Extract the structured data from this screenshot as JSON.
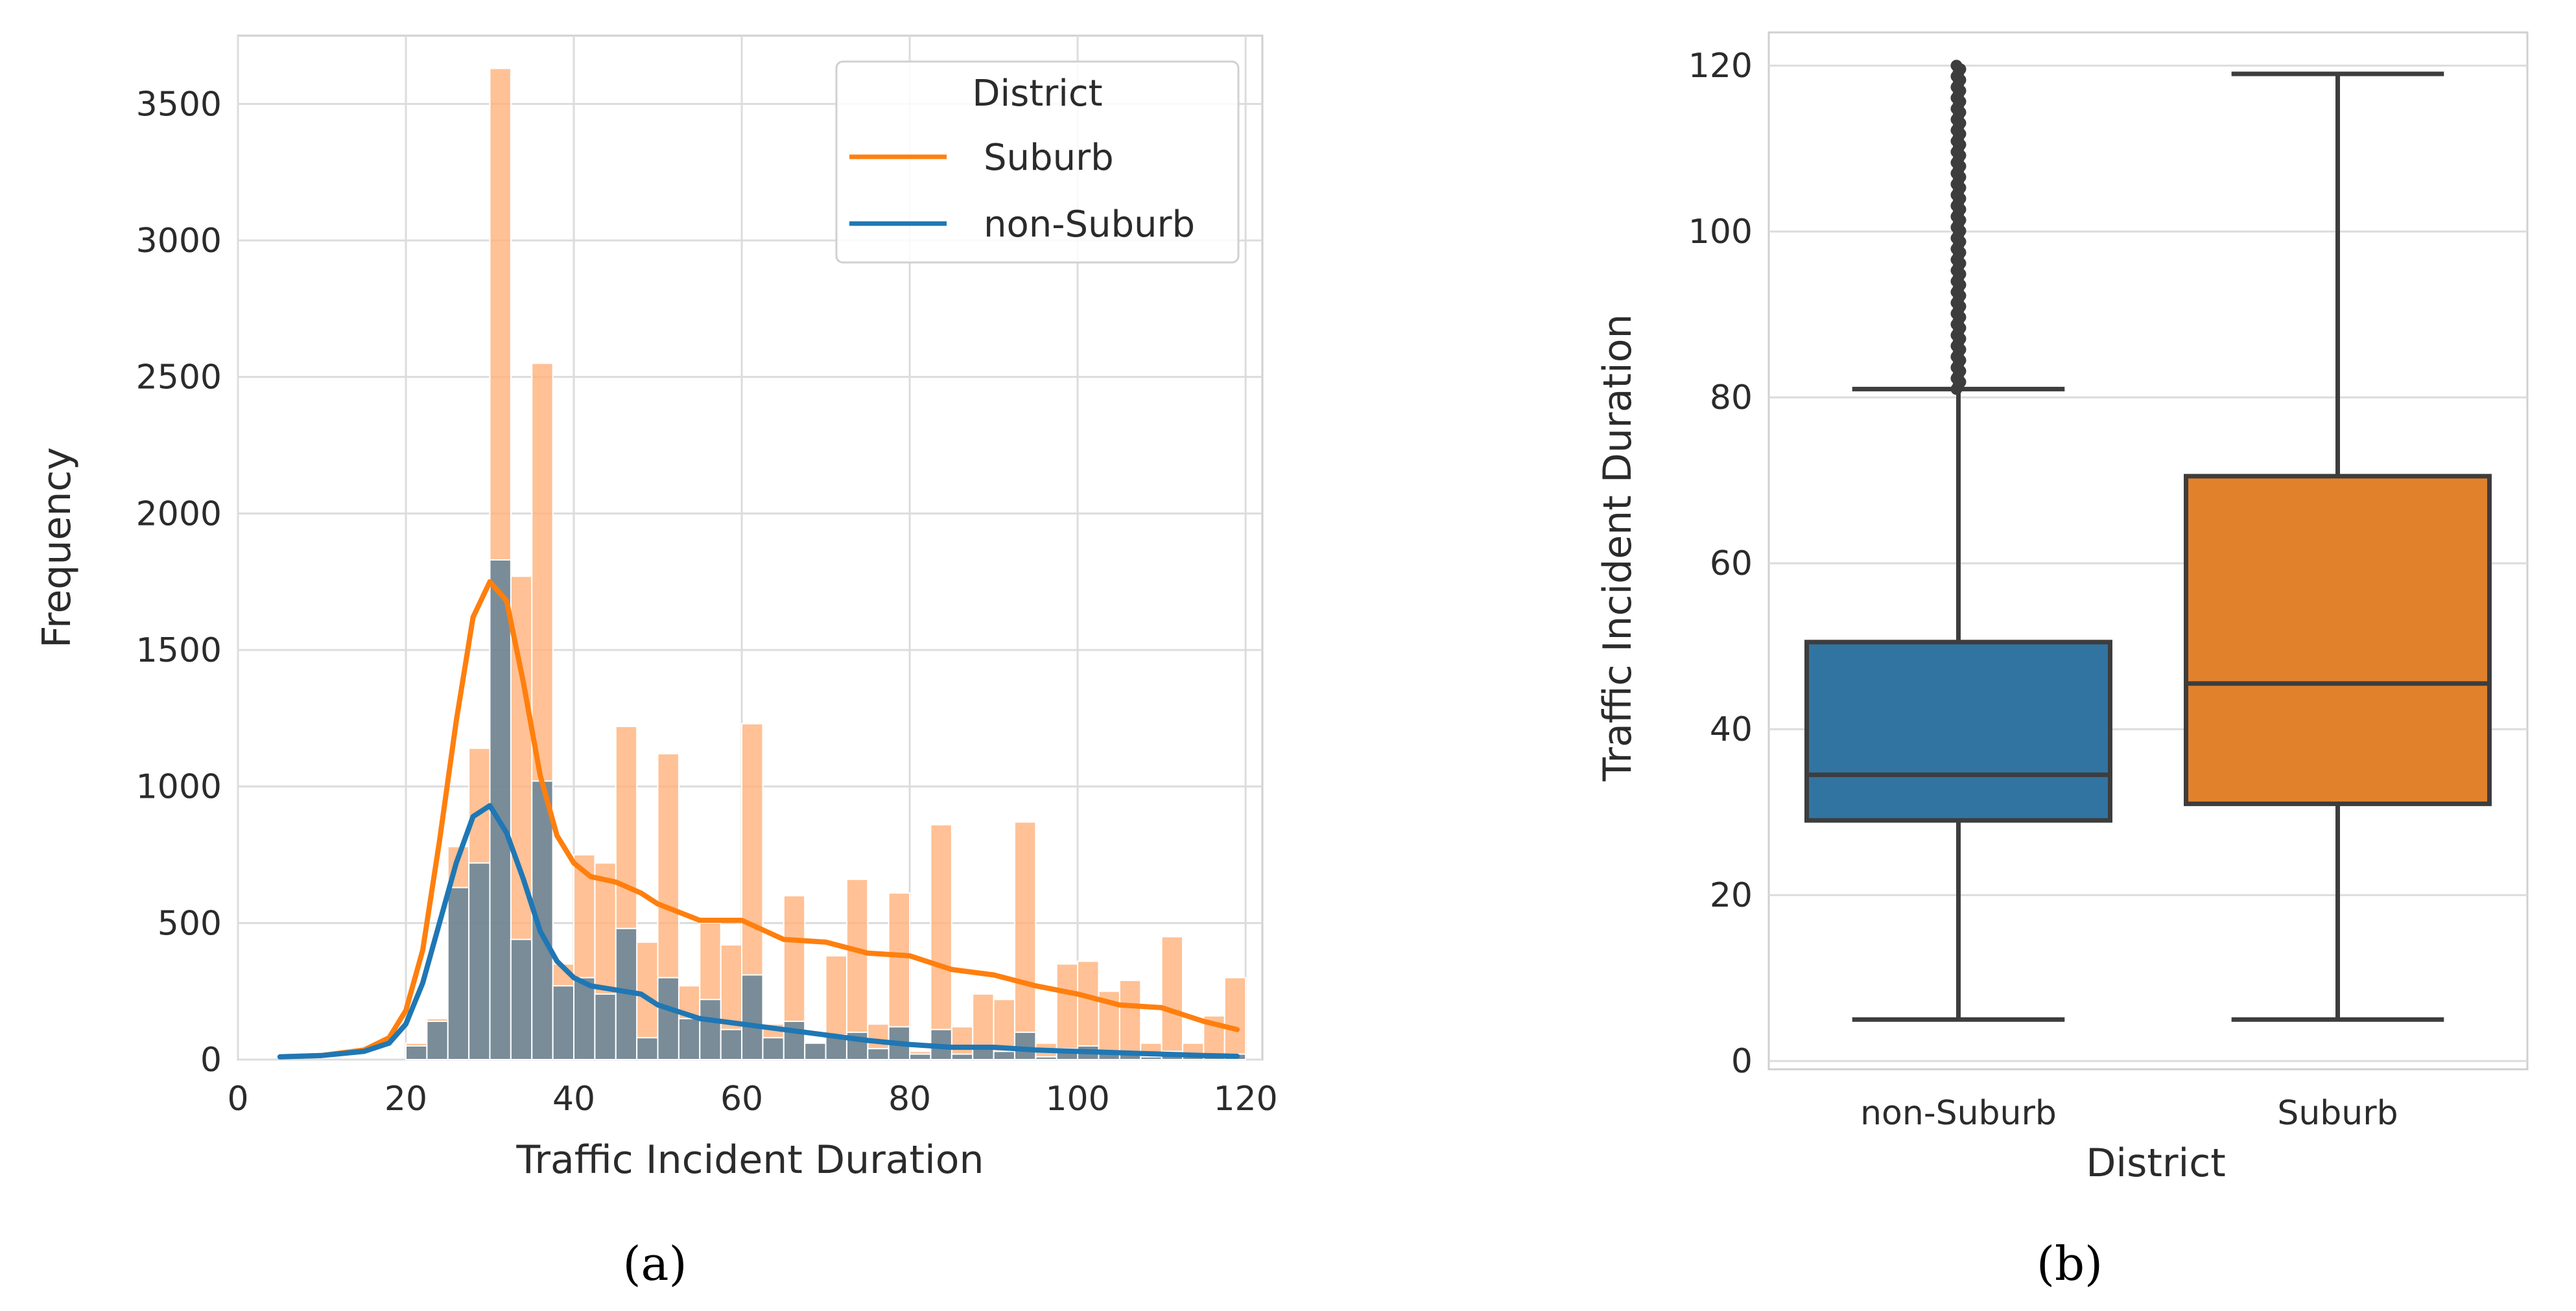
{
  "chart_data": [
    {
      "panel": "a",
      "type": "bar",
      "subtype": "histogram_with_kde",
      "caption": "(a)",
      "xlabel": "Traffic Incident Duration",
      "ylabel": "Frequency",
      "xlim": [
        0,
        122
      ],
      "ylim": [
        0,
        3750
      ],
      "xticks": [
        0,
        20,
        40,
        60,
        80,
        100,
        120
      ],
      "yticks": [
        0,
        500,
        1000,
        1500,
        2000,
        2500,
        3000,
        3500
      ],
      "grid": true,
      "bin_width": 2.5,
      "bin_starts": [
        20,
        22.5,
        25,
        27.5,
        30,
        32.5,
        35,
        37.5,
        40,
        42.5,
        45,
        47.5,
        50,
        52.5,
        55,
        57.5,
        60,
        62.5,
        65,
        67.5,
        70,
        72.5,
        75,
        77.5,
        80,
        82.5,
        85,
        87.5,
        90,
        92.5,
        95,
        97.5,
        100,
        102.5,
        105,
        107.5,
        110,
        112.5,
        115,
        117.5
      ],
      "legend": {
        "title": "District",
        "position": "top-right",
        "entries": [
          "Suburb",
          "non-Suburb"
        ]
      },
      "series": [
        {
          "name": "Suburb",
          "color": "#ff7f0e",
          "bin_counts": [
            60,
            150,
            780,
            1140,
            3630,
            1770,
            2550,
            350,
            750,
            720,
            1220,
            430,
            1120,
            270,
            500,
            420,
            1230,
            130,
            600,
            60,
            380,
            660,
            130,
            610,
            30,
            860,
            120,
            240,
            220,
            870,
            60,
            350,
            360,
            250,
            290,
            60,
            450,
            60,
            160,
            300
          ],
          "kde_x": [
            5,
            10,
            15,
            18,
            20,
            22,
            24,
            26,
            28,
            30,
            32,
            34,
            36,
            38,
            40,
            42,
            45,
            48,
            50,
            55,
            60,
            65,
            70,
            75,
            80,
            85,
            90,
            95,
            100,
            105,
            110,
            115,
            119
          ],
          "kde_y": [
            10,
            15,
            35,
            80,
            180,
            400,
            800,
            1240,
            1620,
            1750,
            1680,
            1380,
            1040,
            820,
            720,
            670,
            650,
            610,
            570,
            510,
            510,
            440,
            430,
            390,
            380,
            330,
            310,
            270,
            240,
            200,
            190,
            140,
            110
          ]
        },
        {
          "name": "non-Suburb",
          "color": "#1f77b4",
          "bin_counts": [
            50,
            140,
            630,
            720,
            1830,
            440,
            1020,
            270,
            300,
            240,
            480,
            80,
            300,
            150,
            220,
            110,
            310,
            80,
            140,
            60,
            90,
            100,
            40,
            120,
            20,
            110,
            20,
            40,
            30,
            100,
            10,
            40,
            50,
            30,
            20,
            10,
            30,
            10,
            10,
            20
          ],
          "kde_x": [
            5,
            10,
            15,
            18,
            20,
            22,
            24,
            26,
            28,
            30,
            32,
            34,
            36,
            38,
            40,
            42,
            45,
            48,
            50,
            55,
            60,
            65,
            70,
            75,
            80,
            85,
            90,
            95,
            100,
            105,
            110,
            115,
            119
          ],
          "kde_y": [
            10,
            15,
            30,
            60,
            130,
            280,
            500,
            720,
            890,
            930,
            830,
            660,
            470,
            360,
            300,
            270,
            255,
            240,
            200,
            150,
            130,
            110,
            90,
            70,
            55,
            45,
            45,
            35,
            30,
            25,
            20,
            15,
            12
          ]
        }
      ]
    },
    {
      "panel": "b",
      "type": "box",
      "caption": "(b)",
      "xlabel": "District",
      "ylabel": "Traffic Incident Duration",
      "ylim": [
        -1,
        124
      ],
      "yticks": [
        0,
        20,
        40,
        60,
        80,
        100,
        120
      ],
      "grid": true,
      "categories": [
        "non-Suburb",
        "Suburb"
      ],
      "boxes": [
        {
          "name": "non-Suburb",
          "color": "#3274a1",
          "whisker_low": 5,
          "q1": 29,
          "median": 34.5,
          "q3": 50.5,
          "whisker_high": 81,
          "outlier_range": [
            81,
            120
          ]
        },
        {
          "name": "Suburb",
          "color": "#e1812c",
          "whisker_low": 5,
          "q1": 31,
          "median": 45.5,
          "q3": 70.5,
          "whisker_high": 119,
          "outlier_range": null
        }
      ]
    }
  ]
}
